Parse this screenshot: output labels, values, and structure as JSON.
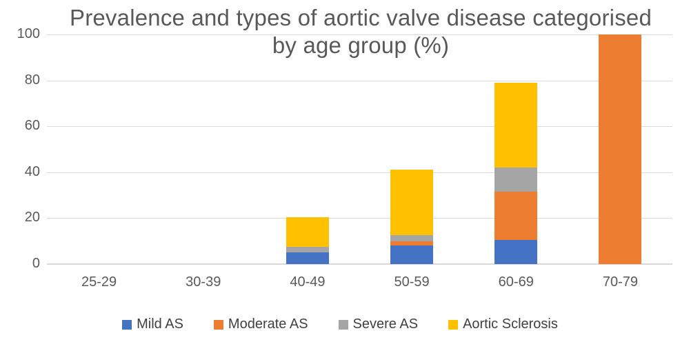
{
  "chart_data": {
    "type": "bar",
    "stacked": true,
    "title": "Prevalence and types of aortic valve disease categorised by age group (%)",
    "categories": [
      "25-29",
      "30-39",
      "40-49",
      "50-59",
      "60-69",
      "70-79"
    ],
    "series": [
      {
        "name": "Mild AS",
        "color": "#4472C4",
        "values": [
          0,
          0,
          5,
          8,
          10.5,
          0
        ]
      },
      {
        "name": "Moderate AS",
        "color": "#ED7D31",
        "values": [
          0,
          0,
          0,
          2,
          21,
          100
        ]
      },
      {
        "name": "Severe AS",
        "color": "#A5A5A5",
        "values": [
          0,
          0,
          2.5,
          2.5,
          10.5,
          0
        ]
      },
      {
        "name": "Aortic Sclerosis",
        "color": "#FFC000",
        "values": [
          0,
          0,
          13,
          28.5,
          37,
          0
        ]
      }
    ],
    "stack_totals": [
      0,
      0,
      20.5,
      41,
      79,
      100
    ],
    "xlabel": "",
    "ylabel": "",
    "ylim": [
      0,
      100
    ],
    "y_ticks": [
      0,
      20,
      40,
      60,
      80,
      100
    ],
    "grid": true,
    "legend_position": "bottom",
    "colors": {
      "gridline": "#D9D9D9",
      "title_text": "#595959",
      "axis_text": "#595959",
      "legend_text": "#404040",
      "background": "#FFFFFF"
    }
  }
}
